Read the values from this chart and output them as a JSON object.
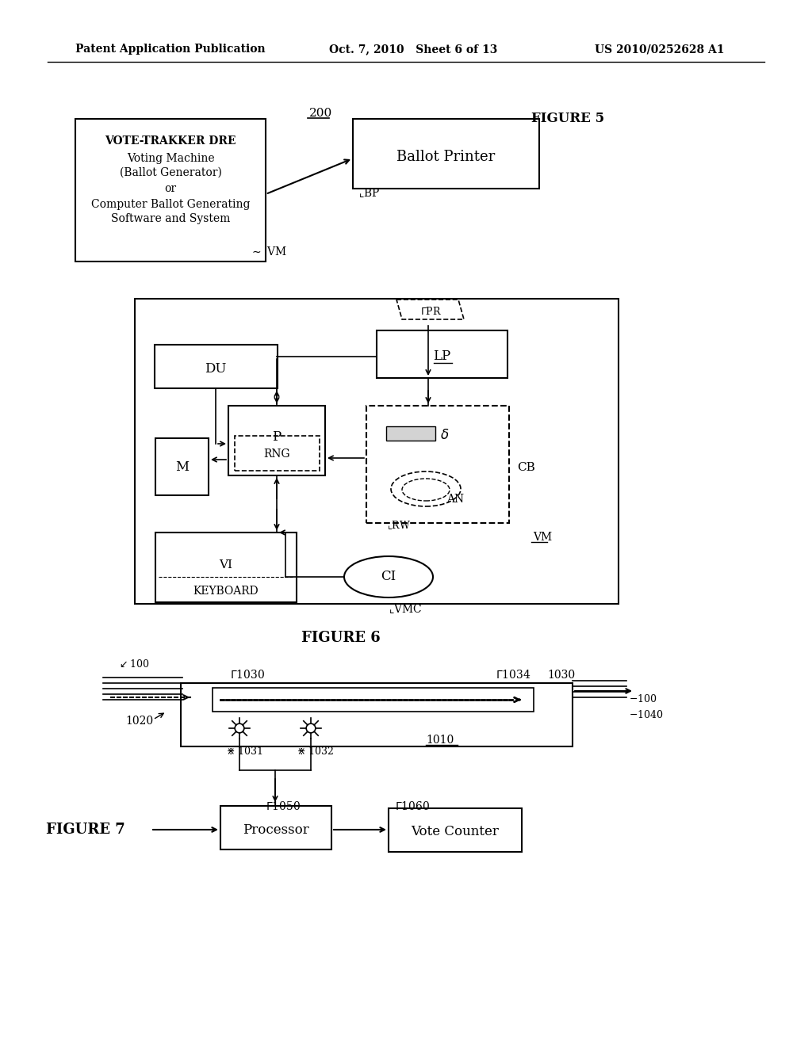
{
  "bg_color": "#ffffff",
  "header_left": "Patent Application Publication",
  "header_center": "Oct. 7, 2010   Sheet 6 of 13",
  "header_right": "US 2010/0252628 A1",
  "fig5_title": "FIGURE 5",
  "fig6_title": "FIGURE 6",
  "fig7_label": "FIGURE 7"
}
